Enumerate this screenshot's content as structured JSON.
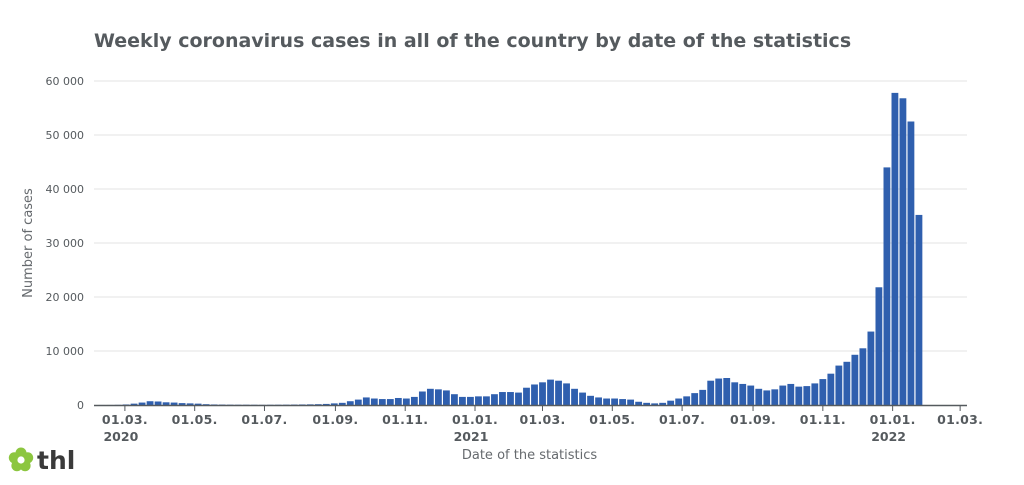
{
  "chart_data": {
    "type": "bar",
    "title": "Weekly coronavirus cases in all of the country by date of the statistics",
    "xlabel": "Date of the statistics",
    "ylabel": "Number of cases",
    "ylim": [
      0,
      60000
    ],
    "yticks": [
      0,
      10000,
      20000,
      30000,
      40000,
      50000,
      60000
    ],
    "ytick_labels": [
      "0",
      "10 000",
      "20 000",
      "30 000",
      "40 000",
      "50 000",
      "60 000"
    ],
    "xlim": [
      "2020-02-03",
      "2022-03-07"
    ],
    "xticks": [
      {
        "date": "2020-03-01",
        "label": "01.03.",
        "year": "2020"
      },
      {
        "date": "2020-05-01",
        "label": "01.05.",
        "year": ""
      },
      {
        "date": "2020-07-01",
        "label": "01.07.",
        "year": ""
      },
      {
        "date": "2020-09-01",
        "label": "01.09.",
        "year": ""
      },
      {
        "date": "2020-11-01",
        "label": "01.11.",
        "year": ""
      },
      {
        "date": "2021-01-01",
        "label": "01.01.",
        "year": "2021"
      },
      {
        "date": "2021-03-01",
        "label": "01.03.",
        "year": ""
      },
      {
        "date": "2021-05-01",
        "label": "01.05.",
        "year": ""
      },
      {
        "date": "2021-07-01",
        "label": "01.07.",
        "year": ""
      },
      {
        "date": "2021-09-01",
        "label": "01.09.",
        "year": ""
      },
      {
        "date": "2021-11-01",
        "label": "01.11.",
        "year": ""
      },
      {
        "date": "2022-01-01",
        "label": "01.01.",
        "year": "2022"
      },
      {
        "date": "2022-03-01",
        "label": "01.03.",
        "year": ""
      }
    ],
    "grid": true,
    "bar_color": "#2f5fae",
    "series": [
      {
        "bin": "weekly",
        "x": [
          "2020-02-10",
          "2020-02-17",
          "2020-02-24",
          "2020-03-02",
          "2020-03-09",
          "2020-03-16",
          "2020-03-23",
          "2020-03-30",
          "2020-04-06",
          "2020-04-13",
          "2020-04-20",
          "2020-04-27",
          "2020-05-04",
          "2020-05-11",
          "2020-05-18",
          "2020-05-25",
          "2020-06-01",
          "2020-06-08",
          "2020-06-15",
          "2020-06-22",
          "2020-06-29",
          "2020-07-06",
          "2020-07-13",
          "2020-07-20",
          "2020-07-27",
          "2020-08-03",
          "2020-08-10",
          "2020-08-17",
          "2020-08-24",
          "2020-08-31",
          "2020-09-07",
          "2020-09-14",
          "2020-09-21",
          "2020-09-28",
          "2020-10-05",
          "2020-10-12",
          "2020-10-19",
          "2020-10-26",
          "2020-11-02",
          "2020-11-09",
          "2020-11-16",
          "2020-11-23",
          "2020-11-30",
          "2020-12-07",
          "2020-12-14",
          "2020-12-21",
          "2020-12-28",
          "2021-01-04",
          "2021-01-11",
          "2021-01-18",
          "2021-01-25",
          "2021-02-01",
          "2021-02-08",
          "2021-02-15",
          "2021-02-22",
          "2021-03-01",
          "2021-03-08",
          "2021-03-15",
          "2021-03-22",
          "2021-03-29",
          "2021-04-05",
          "2021-04-12",
          "2021-04-19",
          "2021-04-26",
          "2021-05-03",
          "2021-05-10",
          "2021-05-17",
          "2021-05-24",
          "2021-05-31",
          "2021-06-07",
          "2021-06-14",
          "2021-06-21",
          "2021-06-28",
          "2021-07-05",
          "2021-07-12",
          "2021-07-19",
          "2021-07-26",
          "2021-08-02",
          "2021-08-09",
          "2021-08-16",
          "2021-08-23",
          "2021-08-30",
          "2021-09-06",
          "2021-09-13",
          "2021-09-20",
          "2021-09-27",
          "2021-10-04",
          "2021-10-11",
          "2021-10-18",
          "2021-10-25",
          "2021-11-01",
          "2021-11-08",
          "2021-11-15",
          "2021-11-22",
          "2021-11-29",
          "2021-12-06",
          "2021-12-13",
          "2021-12-20",
          "2021-12-27",
          "2022-01-03",
          "2022-01-10",
          "2022-01-17",
          "2022-01-24"
        ],
        "values": [
          5,
          10,
          30,
          100,
          250,
          450,
          700,
          650,
          500,
          450,
          350,
          300,
          250,
          150,
          100,
          80,
          60,
          50,
          50,
          40,
          30,
          40,
          50,
          60,
          80,
          100,
          120,
          150,
          200,
          300,
          400,
          700,
          1000,
          1400,
          1200,
          1100,
          1100,
          1300,
          1200,
          1500,
          2500,
          3000,
          2900,
          2700,
          2000,
          1500,
          1500,
          1600,
          1600,
          2000,
          2400,
          2400,
          2300,
          3200,
          3800,
          4200,
          4700,
          4500,
          4000,
          3000,
          2300,
          1700,
          1400,
          1200,
          1200,
          1100,
          1000,
          600,
          400,
          300,
          400,
          800,
          1200,
          1600,
          2200,
          2800,
          4500,
          4900,
          5000,
          4200,
          3900,
          3600,
          3000,
          2700,
          2900,
          3600,
          3900,
          3400,
          3500,
          4000,
          4800,
          5800,
          7300,
          8000,
          9300,
          10500,
          13600,
          21800,
          44000,
          57800,
          56800,
          52500,
          35200
        ]
      }
    ],
    "source_logo": "thl"
  }
}
